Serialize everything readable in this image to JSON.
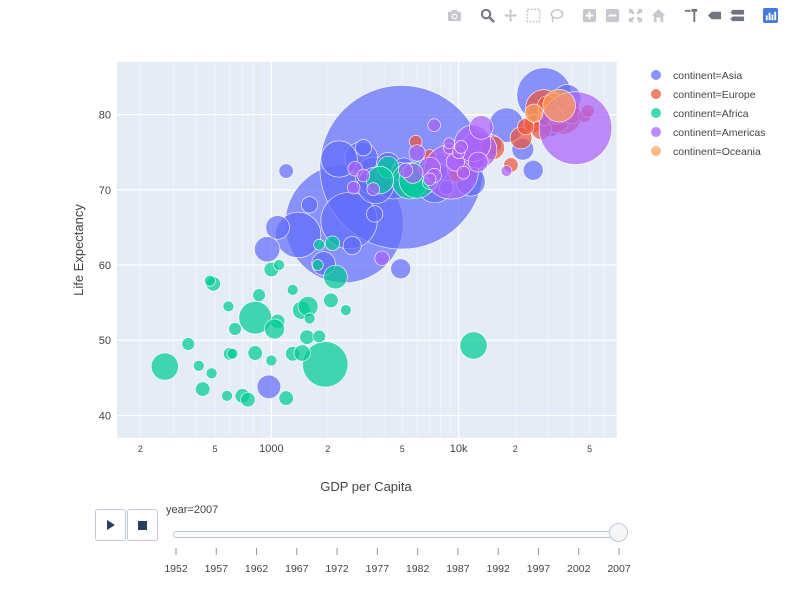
{
  "modebar": {
    "icons": [
      "camera-icon",
      "zoom-icon",
      "pan-icon",
      "box-select-icon",
      "lasso-icon",
      "zoom-in-icon",
      "zoom-out-icon",
      "autoscale-icon",
      "reset-axes-icon",
      "spike-lines-icon",
      "hover-closest-icon",
      "hover-compare-icon",
      "plotly-logo-icon"
    ],
    "icon_color": "#c5c8cf",
    "active_color": "#6f7682",
    "logo_color": "#447adb"
  },
  "colors": {
    "plot_bg": "#e5ecf6",
    "grid": "#ffffff",
    "Asia": "#636efa",
    "Europe": "#ef553b",
    "Africa": "#00cc96",
    "Americas": "#ab63fa",
    "Oceania": "#ffa15a"
  },
  "chart_data": {
    "type": "scatter",
    "xlabel": "GDP per Capita",
    "ylabel": "Life Expectancy",
    "x_scale": "log",
    "xlim": [
      150,
      70000
    ],
    "ylim": [
      37,
      87
    ],
    "x_ticks": [
      {
        "value": 200,
        "label": "2"
      },
      {
        "value": 500,
        "label": "5"
      },
      {
        "value": 1000,
        "label": "1000"
      },
      {
        "value": 2000,
        "label": "2"
      },
      {
        "value": 5000,
        "label": "5"
      },
      {
        "value": 10000,
        "label": "10k"
      },
      {
        "value": 20000,
        "label": "2"
      },
      {
        "value": 50000,
        "label": "5"
      }
    ],
    "y_ticks": [
      40,
      50,
      60,
      70,
      80
    ],
    "grid": true,
    "legend_position": "right",
    "legend": [
      "continent=Asia",
      "continent=Europe",
      "continent=Africa",
      "continent=Americas",
      "continent=Oceania"
    ],
    "series": [
      {
        "name": "continent=Asia",
        "key": "Asia",
        "points": [
          [
            2450,
            65.5,
            130
          ],
          [
            4960,
            73.0,
            180
          ],
          [
            2600,
            65.9,
            62
          ],
          [
            28600,
            82.6,
            60
          ],
          [
            3540,
            71.8,
            42
          ],
          [
            7460,
            70.7,
            40
          ],
          [
            4470,
            71.2,
            40
          ],
          [
            3020,
            74.2,
            36
          ],
          [
            38000,
            82.2,
            30
          ],
          [
            11600,
            71.1,
            32
          ],
          [
            1390,
            64.0,
            50
          ],
          [
            18000,
            78.6,
            38
          ],
          [
            950,
            62.1,
            28
          ],
          [
            1900,
            60.2,
            26
          ],
          [
            1080,
            65.0,
            26
          ],
          [
            4200,
            73.4,
            26
          ],
          [
            3600,
            70.6,
            40
          ],
          [
            6700,
            71.1,
            26
          ],
          [
            5100,
            72.8,
            24
          ],
          [
            12000,
            74.0,
            24
          ],
          [
            15000,
            76.0,
            22
          ],
          [
            31000,
            78.4,
            22
          ],
          [
            25000,
            72.6,
            22
          ],
          [
            2700,
            62.6,
            20
          ],
          [
            1600,
            68.0,
            18
          ],
          [
            2300,
            74.1,
            40
          ],
          [
            970,
            43.8,
            26
          ],
          [
            3560,
            66.8,
            18
          ],
          [
            4900,
            72.4,
            20
          ],
          [
            5600,
            71.8,
            22
          ],
          [
            22000,
            75.4,
            24
          ],
          [
            35000,
            79.5,
            24
          ],
          [
            27000,
            80.0,
            24
          ],
          [
            26000,
            80.2,
            20
          ],
          [
            4900,
            59.5,
            22
          ],
          [
            10500,
            74.2,
            18
          ],
          [
            8600,
            70.3,
            16
          ],
          [
            1200,
            72.5,
            16
          ],
          [
            7900,
            72.4,
            18
          ],
          [
            3100,
            75.6,
            18
          ],
          [
            29000,
            79.5,
            18
          ],
          [
            36000,
            81.3,
            18
          ]
        ]
      },
      {
        "name": "continent=Europe",
        "key": "Europe",
        "points": [
          [
            36000,
            79.8,
            40
          ],
          [
            28500,
            80.9,
            40
          ],
          [
            33000,
            79.4,
            30
          ],
          [
            15200,
            75.6,
            26
          ],
          [
            21500,
            76.9,
            24
          ],
          [
            30000,
            80.5,
            22
          ],
          [
            25000,
            78.8,
            20
          ],
          [
            36500,
            80.2,
            22
          ],
          [
            39000,
            80.9,
            22
          ],
          [
            10300,
            72.3,
            18
          ],
          [
            32500,
            81.4,
            24
          ],
          [
            40000,
            80.0,
            20
          ],
          [
            27600,
            78.0,
            22
          ],
          [
            29800,
            81.2,
            22
          ],
          [
            19000,
            73.3,
            16
          ],
          [
            22800,
            78.4,
            18
          ],
          [
            9700,
            72.0,
            16
          ],
          [
            36000,
            81.7,
            16
          ],
          [
            33500,
            79.7,
            16
          ],
          [
            8900,
            75.3,
            14
          ],
          [
            7000,
            74.5,
            14
          ],
          [
            5900,
            76.4,
            14
          ],
          [
            47000,
            79.8,
            14
          ],
          [
            49000,
            80.5,
            14
          ],
          [
            28600,
            79.4,
            14
          ]
        ]
      },
      {
        "name": "continent=Africa",
        "key": "Africa",
        "points": [
          [
            1940,
            46.8,
            50
          ],
          [
            2080,
            55.3,
            16
          ],
          [
            12000,
            49.3,
            30
          ],
          [
            1450,
            54.0,
            20
          ],
          [
            490,
            57.5,
            16
          ],
          [
            4200,
            73.0,
            24
          ],
          [
            5500,
            71.2,
            40
          ],
          [
            3800,
            71.3,
            30
          ],
          [
            2200,
            58.4,
            26
          ],
          [
            1000,
            59.4,
            16
          ],
          [
            820,
            48.3,
            16
          ],
          [
            1300,
            48.2,
            16
          ],
          [
            1080,
            52.5,
            16
          ],
          [
            820,
            53.0,
            36
          ],
          [
            1040,
            51.5,
            22
          ],
          [
            1570,
            54.5,
            22
          ],
          [
            270,
            46.5,
            30
          ],
          [
            430,
            43.5,
            16
          ],
          [
            700,
            42.6,
            16
          ],
          [
            750,
            42.1,
            16
          ],
          [
            1200,
            42.3,
            16
          ],
          [
            600,
            48.2,
            14
          ],
          [
            640,
            51.5,
            14
          ],
          [
            1300,
            56.7,
            12
          ],
          [
            6000,
            71.3,
            40
          ],
          [
            6800,
            72.8,
            14
          ],
          [
            7000,
            71.0,
            16
          ],
          [
            1550,
            50.4,
            16
          ],
          [
            1800,
            50.5,
            14
          ],
          [
            860,
            56.0,
            14
          ],
          [
            1460,
            48.3,
            18
          ],
          [
            1000,
            47.3,
            12
          ],
          [
            360,
            49.5,
            14
          ],
          [
            470,
            57.9,
            12
          ],
          [
            580,
            42.6,
            12
          ],
          [
            1770,
            60.0,
            12
          ],
          [
            1100,
            60.0,
            12
          ],
          [
            1800,
            62.7,
            12
          ],
          [
            2500,
            54.0,
            12
          ],
          [
            2120,
            62.9,
            16
          ],
          [
            1600,
            52.9,
            12
          ],
          [
            480,
            45.6,
            12
          ],
          [
            620,
            48.2,
            12
          ],
          [
            590,
            54.5,
            12
          ],
          [
            410,
            46.6,
            12
          ]
        ]
      },
      {
        "name": "continent=Americas",
        "key": "Americas",
        "points": [
          [
            42000,
            78.2,
            80
          ],
          [
            9100,
            72.4,
            60
          ],
          [
            12800,
            75.3,
            40
          ],
          [
            11900,
            76.2,
            40
          ],
          [
            7000,
            72.9,
            24
          ],
          [
            13200,
            78.3,
            26
          ],
          [
            9600,
            73.7,
            20
          ],
          [
            5700,
            72.2,
            22
          ],
          [
            6000,
            74.9,
            18
          ],
          [
            12700,
            73.7,
            22
          ],
          [
            7400,
            71.9,
            16
          ],
          [
            2800,
            72.8,
            16
          ],
          [
            2750,
            70.3,
            14
          ],
          [
            3500,
            70.1,
            14
          ],
          [
            8900,
            75.5,
            12
          ],
          [
            5200,
            72.6,
            16
          ],
          [
            10000,
            75.0,
            14
          ],
          [
            18000,
            72.5,
            12
          ],
          [
            7000,
            71.4,
            14
          ],
          [
            8900,
            76.2,
            12
          ],
          [
            3900,
            60.9,
            16
          ],
          [
            3100,
            71.9,
            14
          ],
          [
            10600,
            72.3,
            14
          ],
          [
            10300,
            75.7,
            14
          ],
          [
            7400,
            78.6,
            14
          ]
        ]
      },
      {
        "name": "continent=Oceania",
        "key": "Oceania",
        "points": [
          [
            34400,
            81.2,
            36
          ],
          [
            25200,
            80.2,
            20
          ]
        ]
      }
    ]
  },
  "slider": {
    "current_label": "year=2007",
    "steps": [
      "1952",
      "1957",
      "1962",
      "1967",
      "1972",
      "1977",
      "1982",
      "1987",
      "1992",
      "1997",
      "2002",
      "2007"
    ],
    "active_index": 11
  },
  "buttons": {
    "play": "play-icon",
    "stop": "stop-icon"
  }
}
